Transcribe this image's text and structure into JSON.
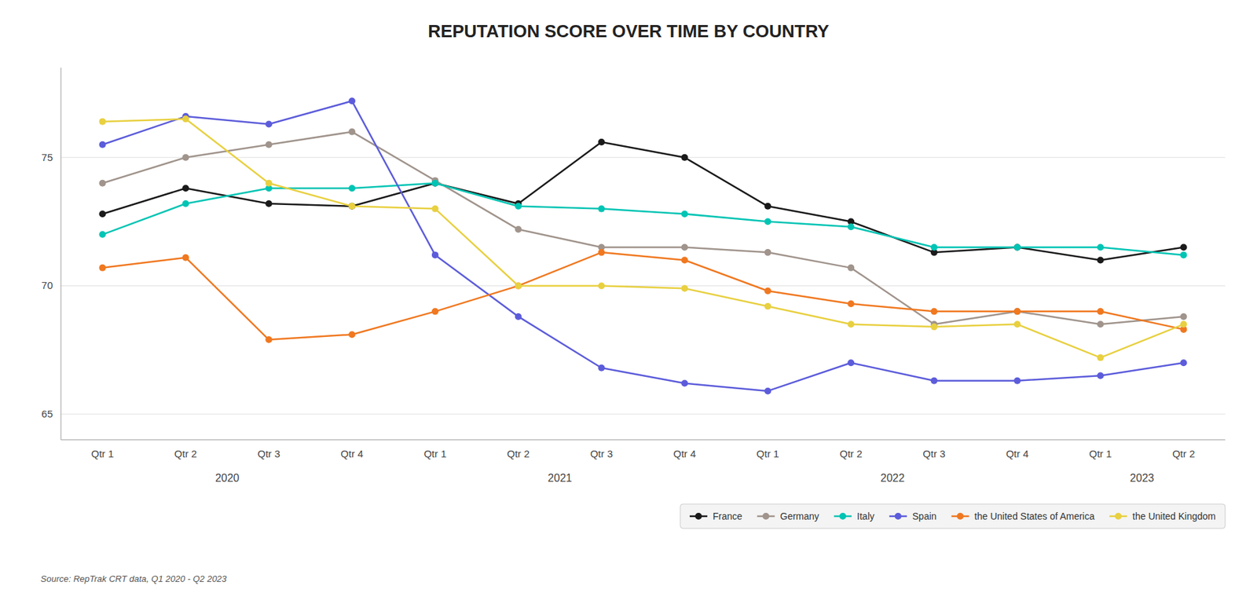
{
  "chart_data": {
    "type": "line",
    "title": "REPUTATION SCORE OVER TIME BY COUNTRY",
    "source": "Source: RepTrak CRT data, Q1 2020 - Q2 2023",
    "categories": [
      "Qtr 1",
      "Qtr 2",
      "Qtr 3",
      "Qtr 4",
      "Qtr 1",
      "Qtr 2",
      "Qtr 3",
      "Qtr 4",
      "Qtr 1",
      "Qtr 2",
      "Qtr 3",
      "Qtr 4",
      "Qtr 1",
      "Qtr 2"
    ],
    "annotations": [
      {
        "text": "2020",
        "x": 1.5
      },
      {
        "text": "2021",
        "x": 5.5
      },
      {
        "text": "2022",
        "x": 9.5
      },
      {
        "text": "2023",
        "x": 12.5
      }
    ],
    "series": [
      {
        "name": "France",
        "color": "#1a1a1a",
        "values": [
          72.8,
          73.8,
          73.2,
          73.1,
          74.0,
          73.2,
          75.6,
          75.0,
          73.1,
          72.5,
          71.3,
          71.5,
          71.0,
          71.5
        ]
      },
      {
        "name": "Germany",
        "color": "#a0948c",
        "values": [
          74.0,
          75.0,
          75.5,
          76.0,
          74.1,
          72.2,
          71.5,
          71.5,
          71.3,
          70.7,
          68.5,
          69.0,
          68.5,
          68.8
        ]
      },
      {
        "name": "Italy",
        "color": "#00c4b4",
        "values": [
          72.0,
          73.2,
          73.8,
          73.8,
          74.0,
          73.1,
          73.0,
          72.8,
          72.5,
          72.3,
          71.5,
          71.5,
          71.5,
          71.2
        ]
      },
      {
        "name": "Spain",
        "color": "#5c5cdb",
        "values": [
          75.5,
          76.6,
          76.3,
          77.2,
          71.2,
          68.8,
          66.8,
          66.2,
          65.9,
          67.0,
          66.3,
          66.3,
          66.5,
          67.0
        ]
      },
      {
        "name": "the United States of America",
        "color": "#f07820",
        "values": [
          70.7,
          71.1,
          67.9,
          68.1,
          69.0,
          70.0,
          71.3,
          71.0,
          69.8,
          69.3,
          69.0,
          69.0,
          69.0,
          68.3
        ]
      },
      {
        "name": "the United Kingdom",
        "color": "#e8d040",
        "values": [
          76.4,
          76.5,
          74.0,
          73.1,
          73.0,
          70.0,
          70.0,
          69.9,
          69.2,
          68.5,
          68.4,
          68.5,
          67.2,
          68.5
        ]
      }
    ],
    "ylim": [
      64.0,
      78.5
    ],
    "yticks": [
      65,
      70,
      75
    ],
    "grid": true,
    "legend": "bottom",
    "marker": "circle"
  }
}
